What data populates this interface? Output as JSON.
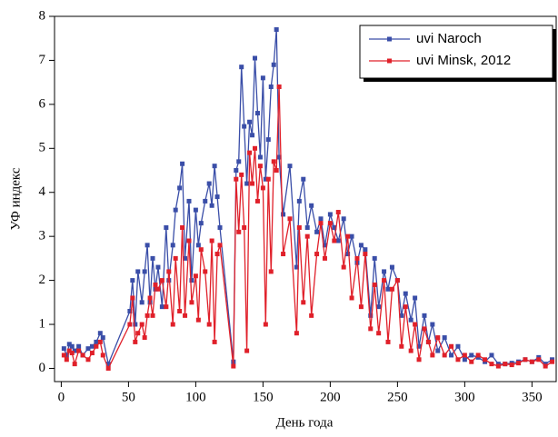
{
  "chart_data": {
    "type": "line",
    "xlabel": "День года",
    "ylabel": "УФ индекс",
    "x": [
      2,
      4,
      6,
      8,
      10,
      13,
      16,
      20,
      23,
      26,
      29,
      31,
      35,
      51,
      53,
      55,
      57,
      60,
      62,
      64,
      66,
      68,
      70,
      72,
      75,
      78,
      80,
      83,
      85,
      88,
      90,
      92,
      95,
      97,
      100,
      102,
      104,
      107,
      110,
      112,
      114,
      116,
      118,
      128,
      130,
      132,
      134,
      136,
      138,
      140,
      142,
      144,
      146,
      148,
      150,
      152,
      154,
      156,
      158,
      160,
      162,
      165,
      170,
      175,
      177,
      180,
      183,
      186,
      190,
      193,
      196,
      200,
      203,
      206,
      210,
      213,
      216,
      220,
      223,
      226,
      230,
      233,
      236,
      240,
      243,
      246,
      250,
      253,
      256,
      260,
      263,
      266,
      270,
      273,
      276,
      280,
      285,
      290,
      295,
      300,
      305,
      310,
      315,
      320,
      325,
      330,
      335,
      340,
      345,
      350,
      355,
      360,
      365
    ],
    "series": [
      {
        "name": "uvi Naroch",
        "color": "#3a4ea8",
        "values": [
          0.45,
          0.3,
          0.55,
          0.5,
          0.4,
          0.5,
          0.3,
          0.45,
          0.5,
          0.6,
          0.8,
          0.7,
          0.1,
          1.3,
          2.0,
          1.0,
          2.2,
          1.5,
          2.2,
          2.8,
          1.5,
          2.5,
          1.8,
          2.3,
          1.4,
          3.2,
          2.0,
          2.8,
          3.6,
          4.1,
          4.65,
          2.5,
          3.8,
          2.0,
          3.6,
          2.8,
          3.3,
          3.8,
          4.2,
          3.7,
          4.6,
          3.9,
          3.2,
          0.15,
          4.5,
          4.7,
          6.85,
          5.5,
          4.2,
          5.6,
          5.3,
          7.05,
          5.8,
          4.8,
          6.6,
          4.3,
          5.2,
          6.4,
          6.9,
          7.7,
          4.8,
          3.5,
          4.6,
          2.3,
          3.8,
          4.3,
          3.2,
          3.7,
          3.1,
          3.4,
          2.8,
          3.5,
          3.2,
          2.9,
          3.4,
          2.6,
          3.0,
          2.4,
          2.8,
          2.7,
          1.2,
          2.5,
          1.4,
          2.2,
          1.8,
          2.3,
          2.0,
          1.2,
          1.7,
          1.1,
          1.6,
          0.5,
          1.2,
          0.6,
          1.0,
          0.4,
          0.7,
          0.3,
          0.5,
          0.2,
          0.3,
          0.25,
          0.15,
          0.3,
          0.1,
          0.1,
          0.12,
          0.15,
          0.2,
          0.15,
          0.25,
          0.1,
          0.2
        ]
      },
      {
        "name": "uvi Minsk, 2012",
        "color": "#e0202a",
        "values": [
          0.3,
          0.2,
          0.4,
          0.35,
          0.1,
          0.4,
          0.3,
          0.2,
          0.35,
          0.5,
          0.6,
          0.3,
          0.0,
          1.0,
          1.6,
          0.6,
          0.8,
          1.0,
          0.7,
          1.2,
          1.6,
          1.2,
          1.9,
          1.8,
          2.0,
          1.4,
          2.2,
          1.0,
          2.5,
          1.3,
          3.2,
          1.2,
          2.9,
          1.5,
          2.1,
          1.1,
          2.7,
          2.2,
          1.0,
          2.9,
          0.6,
          2.6,
          2.8,
          0.05,
          4.3,
          3.1,
          4.4,
          3.2,
          0.4,
          4.9,
          4.2,
          5.0,
          3.8,
          4.6,
          4.1,
          1.0,
          4.3,
          2.2,
          4.7,
          4.5,
          6.4,
          2.6,
          3.4,
          0.8,
          3.2,
          1.5,
          3.0,
          1.2,
          2.6,
          3.3,
          2.5,
          3.3,
          2.9,
          3.55,
          2.3,
          3.0,
          1.6,
          2.5,
          1.4,
          2.6,
          0.9,
          1.9,
          0.8,
          2.0,
          0.6,
          1.8,
          2.0,
          0.5,
          1.4,
          0.4,
          1.0,
          0.2,
          0.9,
          0.6,
          0.3,
          0.7,
          0.3,
          0.5,
          0.2,
          0.3,
          0.15,
          0.3,
          0.2,
          0.1,
          0.05,
          0.1,
          0.08,
          0.12,
          0.2,
          0.15,
          0.2,
          0.05,
          0.15
        ]
      }
    ],
    "xlim": [
      -5,
      368
    ],
    "xticks": [
      0,
      50,
      100,
      150,
      200,
      250,
      300,
      350
    ],
    "ylim": [
      -0.3,
      8
    ],
    "yticks": [
      0,
      1,
      2,
      3,
      4,
      5,
      6,
      7,
      8
    ],
    "legend": "upper right"
  }
}
